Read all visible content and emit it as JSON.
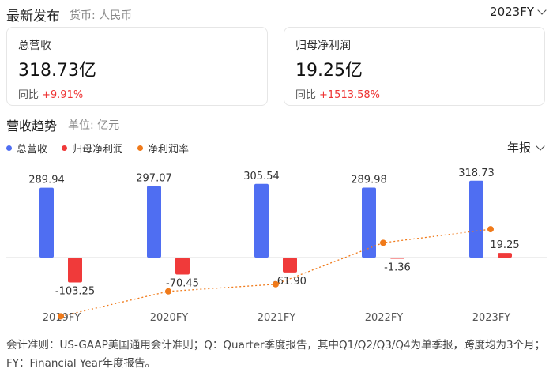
{
  "header": {
    "title": "最新发布",
    "currency": "货币: 人民币",
    "period": "2023FY"
  },
  "cards": [
    {
      "label": "总营收",
      "value": "318.73亿",
      "yoy_label": "同比",
      "yoy_value": "+9.91%"
    },
    {
      "label": "归母净利润",
      "value": "19.25亿",
      "yoy_label": "同比",
      "yoy_value": "+1513.58%"
    }
  ],
  "section": {
    "title": "营收趋势",
    "unit": "单位: 亿元",
    "frequency": "年报"
  },
  "colors": {
    "revenue": "#4f6ef2",
    "profit": "#f03a3a",
    "margin": "#f07a1a",
    "up": "#ee3333"
  },
  "chart_data": {
    "type": "bar",
    "categories": [
      "2019FY",
      "2020FY",
      "2021FY",
      "2022FY",
      "2023FY"
    ],
    "series": [
      {
        "name": "总营收",
        "values": [
          289.94,
          297.07,
          305.54,
          289.98,
          318.73
        ],
        "labels": [
          "289.94",
          "297.07",
          "305.54",
          "289.98",
          "318.73"
        ]
      },
      {
        "name": "归母净利润",
        "values": [
          -103.25,
          -70.45,
          -61.9,
          -1.36,
          19.25
        ],
        "labels": [
          "-103.25",
          "-70.45",
          "-61.90",
          "-1.36",
          "19.25"
        ]
      },
      {
        "name": "净利润率",
        "type": "line",
        "values": [
          -35.6,
          -23.7,
          -20.3,
          -0.5,
          6.0
        ]
      }
    ],
    "ylim": [
      -130,
      330
    ],
    "legend": "top-left",
    "grid": false
  },
  "footnote": "会计准则：US-GAAP美国通用会计准则；Q：Quarter季度报告，其中Q1/Q2/Q3/Q4为单季报，跨度均为3个月；FY：Financial Year年度报告。"
}
